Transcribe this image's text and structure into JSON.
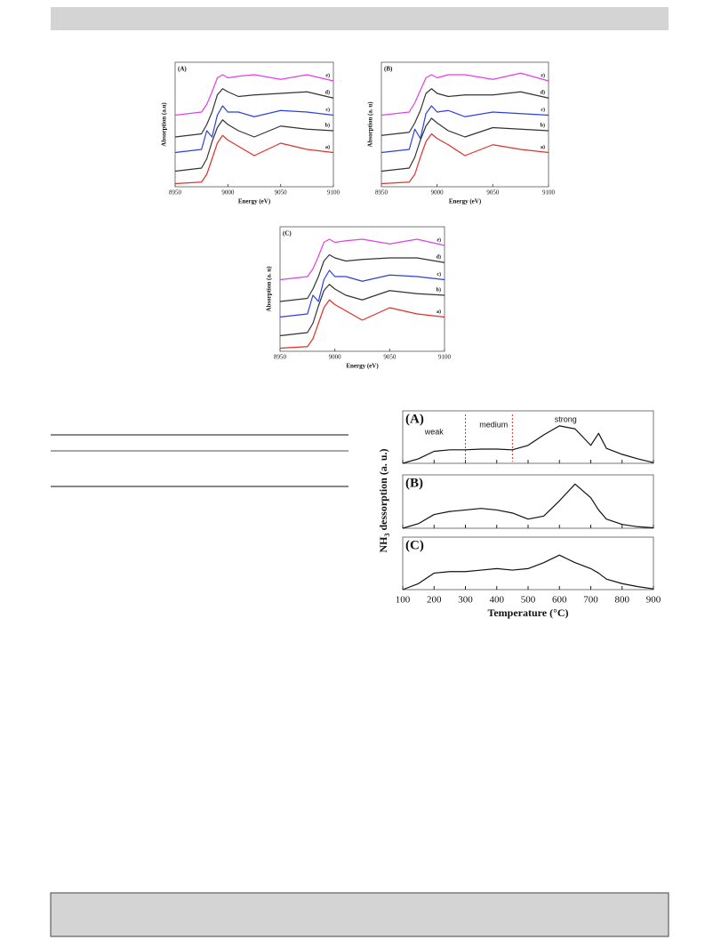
{
  "figure_xanes": {
    "panels": [
      {
        "label": "(A)",
        "y_label": "Absorption (a.u)",
        "x_label": "Energy (eV)",
        "xlim": [
          8950,
          9100
        ],
        "xticks": [
          8950,
          9000,
          9050,
          9100
        ],
        "ylim": [
          0,
          8
        ],
        "x": [
          8950,
          8975,
          8980,
          8985,
          8990,
          8995,
          9000,
          9010,
          9025,
          9050,
          9075,
          9100
        ],
        "series": [
          {
            "name": "a)",
            "color": "#e0302a",
            "values": [
              0.2,
              0.3,
              0.8,
              1.8,
              2.8,
              3.3,
              3.0,
              2.6,
              2.0,
              2.8,
              2.4,
              2.2
            ]
          },
          {
            "name": "b)",
            "color": "#333333",
            "values": [
              1.0,
              1.2,
              1.8,
              2.9,
              3.8,
              4.3,
              4.0,
              3.6,
              3.2,
              3.9,
              3.7,
              3.6
            ]
          },
          {
            "name": "c)",
            "color": "#2b3fe0",
            "values": [
              2.2,
              2.4,
              3.6,
              3.2,
              4.6,
              5.2,
              4.8,
              4.8,
              4.5,
              4.9,
              4.8,
              4.6
            ]
          },
          {
            "name": "d)",
            "color": "#333333",
            "values": [
              3.2,
              3.4,
              4.0,
              4.8,
              5.9,
              6.3,
              6.1,
              5.8,
              5.9,
              6.0,
              6.1,
              5.7
            ]
          },
          {
            "name": "e)",
            "color": "#e040e8",
            "values": [
              4.6,
              4.8,
              5.3,
              6.1,
              7.0,
              7.2,
              7.0,
              7.1,
              7.2,
              6.9,
              7.2,
              6.8
            ]
          }
        ]
      },
      {
        "label": "(B)",
        "y_label": "Absorption (a. u)",
        "x_label": "Energy (eV)",
        "xlim": [
          8950,
          9100
        ],
        "xticks": [
          8950,
          9000,
          9050,
          9100
        ],
        "ylim": [
          0,
          8
        ],
        "x": [
          8950,
          8975,
          8980,
          8985,
          8990,
          8995,
          9000,
          9010,
          9025,
          9050,
          9075,
          9100
        ],
        "series": [
          {
            "name": "a)",
            "color": "#e0302a",
            "values": [
              0.2,
              0.3,
              0.8,
              1.9,
              2.9,
              3.4,
              3.1,
              2.7,
              2.0,
              2.7,
              2.4,
              2.2
            ]
          },
          {
            "name": "b)",
            "color": "#333333",
            "values": [
              1.0,
              1.2,
              1.9,
              3.0,
              3.9,
              4.4,
              4.1,
              3.6,
              3.2,
              3.8,
              3.7,
              3.6
            ]
          },
          {
            "name": "c)",
            "color": "#2b3fe0",
            "values": [
              2.2,
              2.4,
              3.7,
              3.1,
              4.7,
              5.2,
              4.8,
              4.9,
              4.5,
              4.8,
              4.7,
              4.6
            ]
          },
          {
            "name": "d)",
            "color": "#333333",
            "values": [
              3.3,
              3.5,
              4.1,
              4.9,
              6.0,
              6.3,
              6.0,
              5.8,
              5.9,
              5.9,
              6.1,
              5.7
            ]
          },
          {
            "name": "e)",
            "color": "#e040e8",
            "values": [
              4.6,
              4.8,
              5.4,
              6.2,
              7.0,
              7.2,
              7.0,
              7.2,
              7.2,
              6.9,
              7.3,
              6.8
            ]
          }
        ]
      },
      {
        "label": "(C)",
        "y_label": "Absorption (a. u)",
        "x_label": "Energy (eV)",
        "xlim": [
          8950,
          9100
        ],
        "xticks": [
          8950,
          9000,
          9050,
          9100
        ],
        "ylim": [
          0,
          8
        ],
        "x": [
          8950,
          8975,
          8980,
          8985,
          8990,
          8995,
          9000,
          9010,
          9025,
          9050,
          9075,
          9100
        ],
        "series": [
          {
            "name": "a)",
            "color": "#e0302a",
            "values": [
              0.2,
              0.3,
              0.8,
              1.8,
              2.8,
              3.3,
              3.0,
              2.6,
              2.0,
              2.8,
              2.4,
              2.2
            ]
          },
          {
            "name": "b)",
            "color": "#333333",
            "values": [
              1.0,
              1.2,
              1.8,
              2.9,
              3.9,
              4.3,
              4.0,
              3.6,
              3.3,
              3.9,
              3.7,
              3.6
            ]
          },
          {
            "name": "c)",
            "color": "#2b3fe0",
            "values": [
              2.2,
              2.4,
              3.6,
              3.2,
              4.6,
              5.2,
              4.8,
              4.8,
              4.5,
              4.9,
              4.8,
              4.6
            ]
          },
          {
            "name": "d)",
            "color": "#333333",
            "values": [
              3.2,
              3.4,
              4.0,
              4.8,
              5.8,
              6.2,
              6.0,
              5.8,
              5.9,
              6.0,
              6.0,
              5.7
            ]
          },
          {
            "name": "e)",
            "color": "#e040e8",
            "values": [
              4.6,
              4.8,
              5.3,
              6.1,
              7.0,
              7.2,
              7.0,
              7.1,
              7.2,
              6.9,
              7.2,
              6.8
            ]
          }
        ]
      }
    ]
  },
  "figure_tpd": {
    "y_label": [
      "NH",
      "3",
      " dessorption (a. u.)"
    ],
    "x_label": "Temperature (°C)",
    "xlim": [
      100,
      900
    ],
    "xticks": [
      100,
      200,
      300,
      400,
      500,
      600,
      700,
      800,
      900
    ],
    "ylim": [
      0,
      3.5
    ],
    "x": [
      100,
      150,
      200,
      250,
      300,
      350,
      400,
      450,
      500,
      550,
      600,
      650,
      700,
      725,
      750,
      800,
      850,
      900
    ],
    "panels": [
      {
        "label": "(A)",
        "annotations": [
          "weak",
          "medium",
          "strong"
        ],
        "dividers": [
          300,
          450
        ],
        "values": [
          0,
          0.3,
          0.8,
          0.9,
          0.9,
          0.95,
          0.95,
          0.9,
          1.2,
          1.9,
          2.5,
          2.3,
          1.2,
          2.0,
          1.0,
          0.6,
          0.3,
          0.05
        ]
      },
      {
        "label": "(B)",
        "values": [
          0,
          0.3,
          0.9,
          1.1,
          1.2,
          1.3,
          1.2,
          1.0,
          0.6,
          0.8,
          1.8,
          2.9,
          2.0,
          1.2,
          0.6,
          0.25,
          0.1,
          0.03
        ]
      },
      {
        "label": "(C)",
        "values": [
          0,
          0.4,
          1.1,
          1.2,
          1.2,
          1.3,
          1.4,
          1.3,
          1.4,
          1.8,
          2.3,
          1.8,
          1.4,
          1.1,
          0.7,
          0.4,
          0.2,
          0.05
        ]
      }
    ]
  }
}
